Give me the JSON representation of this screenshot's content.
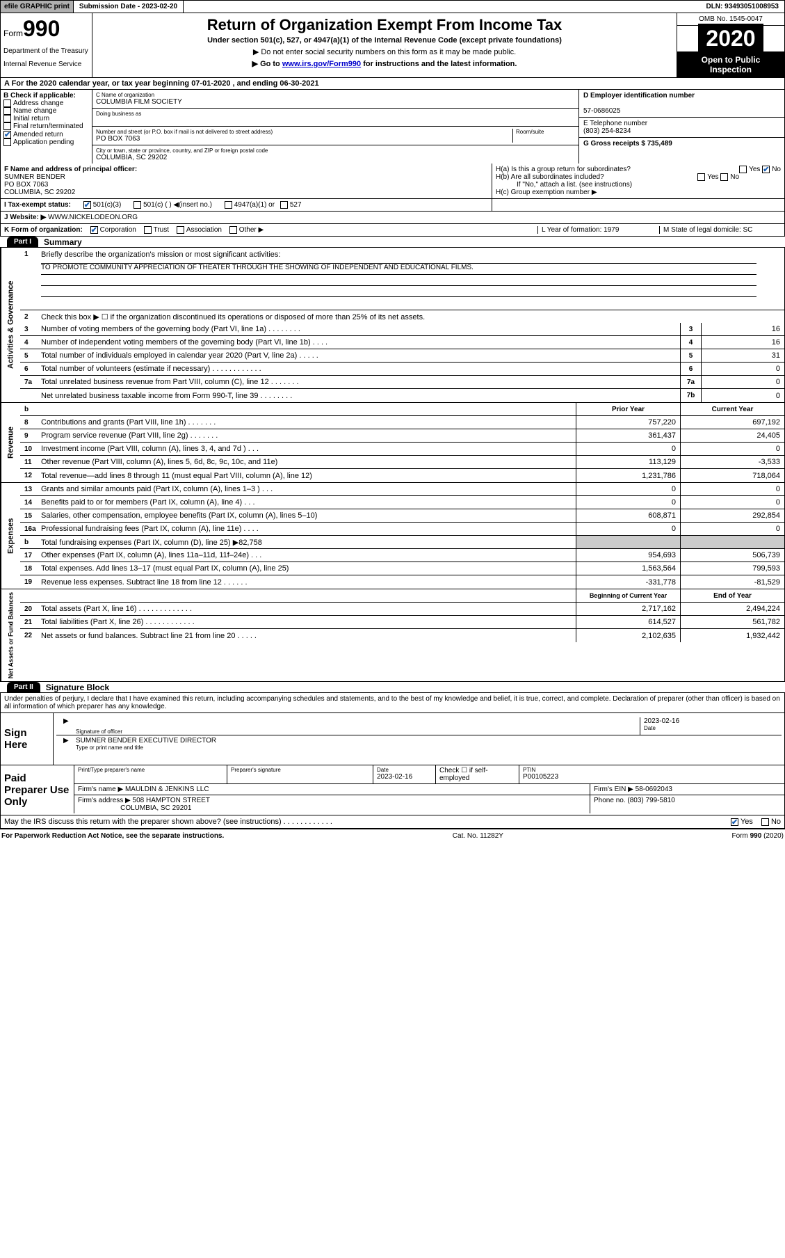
{
  "topbar": {
    "efile": "efile GRAPHIC print",
    "submission": "Submission Date - 2023-02-20",
    "dln": "DLN: 93493051008953"
  },
  "header": {
    "formword": "Form",
    "formno": "990",
    "dept": "Department of the Treasury",
    "irs": "Internal Revenue Service",
    "title": "Return of Organization Exempt From Income Tax",
    "sub": "Under section 501(c), 527, or 4947(a)(1) of the Internal Revenue Code (except private foundations)",
    "note1": "▶ Do not enter social security numbers on this form as it may be made public.",
    "note2_pre": "▶ Go to ",
    "note2_link": "www.irs.gov/Form990",
    "note2_post": " for instructions and the latest information.",
    "omb": "OMB No. 1545-0047",
    "year": "2020",
    "open": "Open to Public Inspection"
  },
  "rowA": "A For the 2020 calendar year, or tax year beginning 07-01-2020    , and ending 06-30-2021",
  "boxB": {
    "head": "B Check if applicable:",
    "items": [
      "Address change",
      "Name change",
      "Initial return",
      "Final return/terminated",
      "Amended return",
      "Application pending"
    ],
    "checked_idx": 4
  },
  "boxC": {
    "name_lbl": "C Name of organization",
    "name": "COLUMBIA FILM SOCIETY",
    "dba_lbl": "Doing business as",
    "addr_lbl": "Number and street (or P.O. box if mail is not delivered to street address)",
    "room_lbl": "Room/suite",
    "addr": "PO BOX 7063",
    "city_lbl": "City or town, state or province, country, and ZIP or foreign postal code",
    "city": "COLUMBIA, SC  29202"
  },
  "boxD": {
    "ein_lbl": "D Employer identification number",
    "ein": "57-0686025",
    "tel_lbl": "E Telephone number",
    "tel": "(803) 254-8234",
    "gross_lbl": "G Gross receipts $ 735,489"
  },
  "boxF": {
    "lbl": "F Name and address of principal officer:",
    "name": "SUMNER BENDER",
    "addr1": "PO BOX 7063",
    "addr2": "COLUMBIA, SC  29202"
  },
  "boxH": {
    "a": "H(a)  Is this a group return for subordinates?",
    "b": "H(b)  Are all subordinates included?",
    "bnote": "If \"No,\" attach a list. (see instructions)",
    "c": "H(c)  Group exemption number ▶",
    "yes": "Yes",
    "no": "No"
  },
  "rowI": {
    "lbl": "I   Tax-exempt status:",
    "opt1": "501(c)(3)",
    "opt2": "501(c) (   ) ◀(insert no.)",
    "opt3": "4947(a)(1) or",
    "opt4": "527"
  },
  "rowJ": {
    "lbl": "J   Website: ▶",
    "val": "  WWW.NICKELODEON.ORG"
  },
  "rowK": {
    "lbl": "K Form of organization:",
    "opts": [
      "Corporation",
      "Trust",
      "Association",
      "Other ▶"
    ],
    "l_lbl": "L Year of formation: 1979",
    "m_lbl": "M State of legal domicile: SC"
  },
  "part1": {
    "tab": "Part I",
    "title": "Summary"
  },
  "summary": {
    "vlabel_gov": "Activities & Governance",
    "q1": "Briefly describe the organization's mission or most significant activities:",
    "mission": "TO PROMOTE COMMUNITY APPRECIATION OF THEATER THROUGH THE SHOWING OF INDEPENDENT AND EDUCATIONAL FILMS.",
    "q2": "Check this box ▶ ☐  if the organization discontinued its operations or disposed of more than 25% of its net assets.",
    "lines_gov": [
      {
        "n": "3",
        "t": "Number of voting members of the governing body (Part VI, line 1a)   .    .    .    .    .    .    .    .",
        "b": "3",
        "v": "16"
      },
      {
        "n": "4",
        "t": "Number of independent voting members of the governing body (Part VI, line 1b)   .    .    .    .",
        "b": "4",
        "v": "16"
      },
      {
        "n": "5",
        "t": "Total number of individuals employed in calendar year 2020 (Part V, line 2a)   .    .    .    .    .",
        "b": "5",
        "v": "31"
      },
      {
        "n": "6",
        "t": "Total number of volunteers (estimate if necessary)   .    .    .    .    .    .    .    .    .    .    .    .",
        "b": "6",
        "v": "0"
      },
      {
        "n": "7a",
        "t": "Total unrelated business revenue from Part VIII, column (C), line 12   .    .    .    .    .    .    .",
        "b": "7a",
        "v": "0"
      },
      {
        "n": "",
        "t": "Net unrelated business taxable income from Form 990-T, line 39   .    .    .    .    .    .    .    .",
        "b": "7b",
        "v": "0"
      }
    ],
    "vlabel_rev": "Revenue",
    "hdr_prior": "Prior Year",
    "hdr_curr": "Current Year",
    "lines_rev": [
      {
        "n": "8",
        "t": "Contributions and grants (Part VIII, line 1h)   .    .    .    .    .    .    .",
        "p": "757,220",
        "c": "697,192"
      },
      {
        "n": "9",
        "t": "Program service revenue (Part VIII, line 2g)   .    .    .    .    .    .    .",
        "p": "361,437",
        "c": "24,405"
      },
      {
        "n": "10",
        "t": "Investment income (Part VIII, column (A), lines 3, 4, and 7d )   .    .    .",
        "p": "0",
        "c": "0"
      },
      {
        "n": "11",
        "t": "Other revenue (Part VIII, column (A), lines 5, 6d, 8c, 9c, 10c, and 11e)",
        "p": "113,129",
        "c": "-3,533"
      },
      {
        "n": "12",
        "t": "Total revenue—add lines 8 through 11 (must equal Part VIII, column (A), line 12)",
        "p": "1,231,786",
        "c": "718,064"
      }
    ],
    "vlabel_exp": "Expenses",
    "lines_exp": [
      {
        "n": "13",
        "t": "Grants and similar amounts paid (Part IX, column (A), lines 1–3 )   .    .    .",
        "p": "0",
        "c": "0"
      },
      {
        "n": "14",
        "t": "Benefits paid to or for members (Part IX, column (A), line 4)   .    .    .",
        "p": "0",
        "c": "0"
      },
      {
        "n": "15",
        "t": "Salaries, other compensation, employee benefits (Part IX, column (A), lines 5–10)",
        "p": "608,871",
        "c": "292,854"
      },
      {
        "n": "16a",
        "t": "Professional fundraising fees (Part IX, column (A), line 11e)   .    .    .    .",
        "p": "0",
        "c": "0"
      },
      {
        "n": "b",
        "t": "Total fundraising expenses (Part IX, column (D), line 25) ▶82,758",
        "p": "",
        "c": "",
        "shade": true
      },
      {
        "n": "17",
        "t": "Other expenses (Part IX, column (A), lines 11a–11d, 11f–24e)   .    .    .",
        "p": "954,693",
        "c": "506,739"
      },
      {
        "n": "18",
        "t": "Total expenses. Add lines 13–17 (must equal Part IX, column (A), line 25)",
        "p": "1,563,564",
        "c": "799,593"
      },
      {
        "n": "19",
        "t": "Revenue less expenses. Subtract line 18 from line 12   .    .    .    .    .    .",
        "p": "-331,778",
        "c": "-81,529"
      }
    ],
    "vlabel_net": "Net Assets or Fund Balances",
    "hdr_beg": "Beginning of Current Year",
    "hdr_end": "End of Year",
    "lines_net": [
      {
        "n": "20",
        "t": "Total assets (Part X, line 16)   .    .    .    .    .    .    .    .    .    .    .    .    .",
        "p": "2,717,162",
        "c": "2,494,224"
      },
      {
        "n": "21",
        "t": "Total liabilities (Part X, line 26)   .    .    .    .    .    .    .    .    .    .    .    .",
        "p": "614,527",
        "c": "561,782"
      },
      {
        "n": "22",
        "t": "Net assets or fund balances. Subtract line 21 from line 20   .    .    .    .    .",
        "p": "2,102,635",
        "c": "1,932,442"
      }
    ]
  },
  "part2": {
    "tab": "Part II",
    "title": "Signature Block"
  },
  "perjury": "Under penalties of perjury, I declare that I have examined this return, including accompanying schedules and statements, and to the best of my knowledge and belief, it is true, correct, and complete. Declaration of preparer (other than officer) is based on all information of which preparer has any knowledge.",
  "sign": {
    "here": "Sign Here",
    "sig_lbl": "Signature of officer",
    "date": "2023-02-16",
    "date_lbl": "Date",
    "name": "SUMNER BENDER  EXECUTIVE DIRECTOR",
    "name_lbl": "Type or print name and title"
  },
  "prep": {
    "here": "Paid Preparer Use Only",
    "r1": {
      "pt": "Print/Type preparer's name",
      "sig": "Preparer's signature",
      "date_lbl": "Date",
      "date": "2023-02-16",
      "chk": "Check ☐  if self-employed",
      "ptin_lbl": "PTIN",
      "ptin": "P00105223"
    },
    "r2": {
      "lbl": "Firm's name      ▶",
      "val": "MAULDIN & JENKINS LLC",
      "ein_lbl": "Firm's EIN ▶",
      "ein": "58-0692043"
    },
    "r3": {
      "lbl": "Firm's address ▶",
      "val": "508 HAMPTON STREET",
      "city": "COLUMBIA, SC  29201",
      "ph_lbl": "Phone no.",
      "ph": "(803) 799-5810"
    }
  },
  "discuss": {
    "t": "May the IRS discuss this return with the preparer shown above? (see instructions)   .    .    .    .    .    .    .    .    .    .    .    .",
    "yes": "Yes",
    "no": "No"
  },
  "footer": {
    "left": "For Paperwork Reduction Act Notice, see the separate instructions.",
    "mid": "Cat. No. 11282Y",
    "right": "Form 990 (2020)"
  },
  "colors": {
    "link": "#0000cc",
    "check": "#1a5fb4",
    "shade": "#cccccc"
  }
}
